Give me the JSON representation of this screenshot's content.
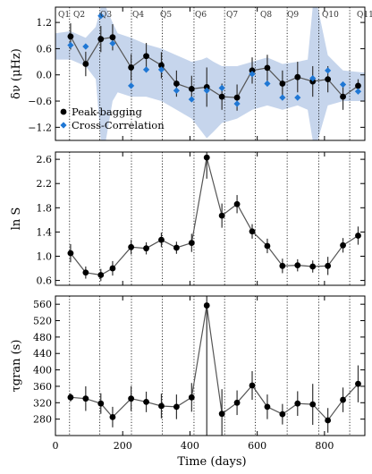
{
  "figure": {
    "xlabel": "Time (days)",
    "colors": {
      "band": "#c6d5ec",
      "peak": "#000000",
      "line": "#555555",
      "xcorr": "#1f77d4",
      "quarter_line": "#000000"
    }
  },
  "quarters": {
    "labels": [
      "Q1",
      "Q2",
      "Q3",
      "Q4",
      "Q5",
      "Q6",
      "Q7",
      "Q8",
      "Q9",
      "Q10",
      "Q11"
    ],
    "boundaries": [
      42,
      132,
      226,
      318,
      412,
      503,
      594,
      689,
      783,
      875
    ]
  },
  "chart_data": [
    {
      "type": "line",
      "panel": "dnu",
      "ylabel": "δν (μHz)",
      "xlim": [
        0,
        920
      ],
      "ylim": [
        -1.5,
        1.55
      ],
      "yticks": [
        -1.2,
        -0.6,
        0.0,
        0.6,
        1.2
      ],
      "legend": {
        "placement": "bottom-left",
        "entries": [
          "Peak-bagging",
          "Cross-Correlation"
        ]
      },
      "series": [
        {
          "name": "Peak-bagging",
          "x": [
            45,
            90,
            135,
            170,
            225,
            270,
            315,
            360,
            405,
            450,
            495,
            540,
            585,
            630,
            675,
            720,
            765,
            810,
            855,
            900
          ],
          "y": [
            0.88,
            0.25,
            0.82,
            0.86,
            0.17,
            0.43,
            0.22,
            -0.2,
            -0.32,
            -0.28,
            -0.5,
            -0.52,
            0.1,
            0.16,
            -0.2,
            -0.05,
            -0.15,
            -0.1,
            -0.5,
            -0.25
          ],
          "err": [
            0.3,
            0.28,
            0.3,
            0.3,
            0.3,
            0.3,
            0.3,
            0.3,
            0.3,
            0.45,
            0.3,
            0.3,
            0.3,
            0.3,
            0.3,
            0.35,
            0.35,
            0.3,
            0.3,
            0.15
          ]
        },
        {
          "name": "Cross-Correlation",
          "x": [
            45,
            90,
            135,
            170,
            225,
            270,
            315,
            360,
            405,
            450,
            495,
            540,
            585,
            630,
            675,
            720,
            765,
            810,
            855,
            900
          ],
          "y": [
            0.68,
            0.65,
            1.35,
            0.72,
            -0.25,
            0.12,
            0.12,
            -0.36,
            -0.56,
            -0.36,
            -0.3,
            -0.66,
            0.02,
            -0.2,
            -0.52,
            -0.52,
            -0.08,
            0.1,
            -0.22,
            -0.38
          ]
        }
      ],
      "uncertainty_band": {
        "x": [
          0,
          45,
          90,
          120,
          135,
          150,
          170,
          185,
          225,
          270,
          315,
          360,
          405,
          435,
          450,
          470,
          495,
          540,
          585,
          630,
          675,
          720,
          750,
          765,
          780,
          810,
          855,
          920
        ],
        "upper": [
          0.95,
          1.0,
          0.85,
          1.1,
          1.55,
          1.55,
          1.2,
          0.95,
          0.85,
          0.7,
          0.6,
          0.45,
          0.3,
          0.35,
          0.4,
          0.3,
          0.2,
          0.2,
          0.3,
          0.4,
          0.25,
          0.3,
          0.35,
          1.55,
          1.55,
          0.45,
          0.1,
          0.05
        ],
        "lower": [
          0.35,
          0.35,
          0.2,
          -0.1,
          -1.5,
          -1.5,
          -0.6,
          -0.4,
          -0.5,
          -0.5,
          -0.6,
          -0.8,
          -1.0,
          -1.3,
          -1.45,
          -1.3,
          -1.1,
          -1.0,
          -0.8,
          -0.7,
          -0.8,
          -0.7,
          -0.8,
          -1.5,
          -1.5,
          -0.7,
          -0.6,
          -0.6
        ]
      }
    },
    {
      "type": "line",
      "panel": "lnS",
      "ylabel": "ln S",
      "xlim": [
        0,
        920
      ],
      "ylim": [
        0.52,
        2.72
      ],
      "yticks": [
        0.6,
        1.0,
        1.4,
        1.8,
        2.2,
        2.6
      ],
      "series": [
        {
          "name": "",
          "x": [
            45,
            90,
            135,
            170,
            225,
            270,
            315,
            360,
            405,
            450,
            495,
            540,
            585,
            630,
            675,
            720,
            765,
            810,
            855,
            900
          ],
          "y": [
            1.05,
            0.73,
            0.69,
            0.8,
            1.15,
            1.13,
            1.27,
            1.14,
            1.22,
            2.63,
            1.67,
            1.86,
            1.41,
            1.17,
            0.84,
            0.85,
            0.83,
            0.84,
            1.18,
            1.34
          ],
          "err": [
            0.15,
            0.1,
            0.1,
            0.12,
            0.12,
            0.1,
            0.12,
            0.1,
            0.15,
            0.35,
            0.2,
            0.15,
            0.12,
            0.12,
            0.12,
            0.1,
            0.1,
            0.15,
            0.12,
            0.15
          ]
        }
      ]
    },
    {
      "type": "line",
      "panel": "tau",
      "ylabel": "τgran (s)",
      "xlim": [
        0,
        920
      ],
      "ylim": [
        240,
        580
      ],
      "yticks": [
        280,
        320,
        360,
        400,
        440,
        480,
        520,
        560
      ],
      "xticks": [
        0,
        200,
        400,
        600,
        800
      ],
      "series": [
        {
          "name": "",
          "x": [
            45,
            90,
            135,
            170,
            225,
            270,
            315,
            360,
            405,
            450,
            495,
            540,
            585,
            630,
            675,
            720,
            765,
            810,
            855,
            900
          ],
          "y": [
            333,
            330,
            318,
            285,
            330,
            322,
            312,
            310,
            333,
            557,
            293,
            320,
            362,
            310,
            292,
            318,
            316,
            277,
            327,
            366
          ],
          "err": [
            10,
            30,
            25,
            25,
            30,
            25,
            30,
            30,
            35,
            320,
            60,
            30,
            35,
            30,
            25,
            30,
            50,
            30,
            30,
            45
          ]
        }
      ]
    }
  ]
}
